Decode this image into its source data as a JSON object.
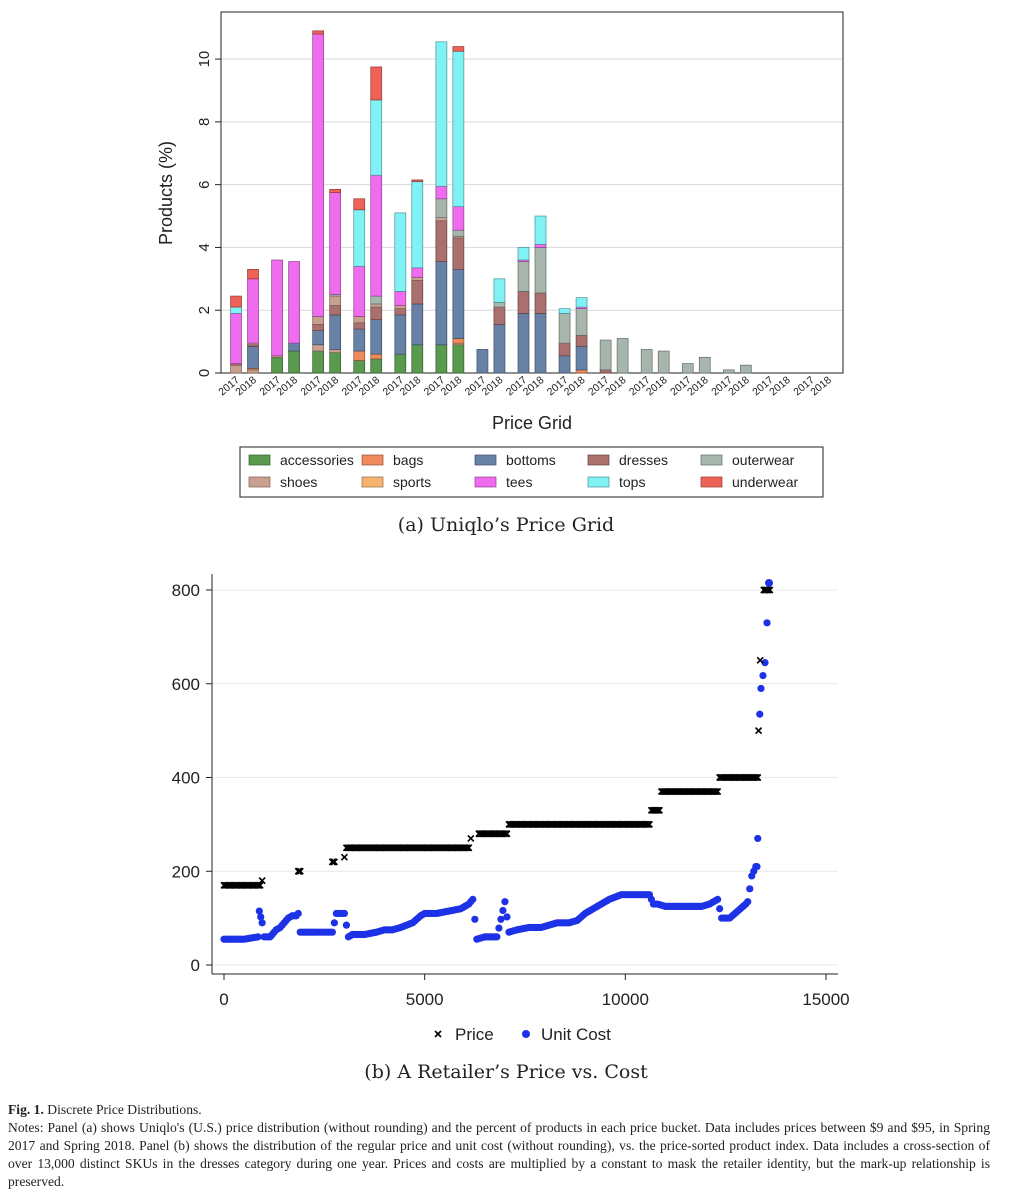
{
  "panel_a_caption": "(a)  Uniqlo’s Price Grid",
  "panel_b_caption": "(b)  A Retailer’s Price vs. Cost",
  "figure": {
    "label": "Fig. 1.",
    "title": "Discrete Price Distributions.",
    "notes": "Notes: Panel (a) shows Uniqlo's (U.S.) price distribution (without rounding) and the percent of products in each price bucket. Data includes prices between $9 and $95, in Spring 2017 and Spring 2018. Panel (b) shows the distribution of the regular price and unit cost (without rounding), vs. the price-sorted product index. Data includes a cross-section of over 13,000 distinct SKUs in the dresses category during one year. Prices and costs are multiplied by a constant to mask the retailer identity, but the mark-up relationship is preserved."
  },
  "colors": {
    "accessories": "#5a9a4e",
    "bags": "#f08a5a",
    "bottoms": "#6882a6",
    "dresses": "#a9706e",
    "outerwear": "#a6b6ad",
    "shoes": "#c9a08e",
    "sports": "#f6b46e",
    "tees": "#ef6cef",
    "tops": "#80f2f6",
    "underwear": "#ee6258",
    "price": "#000000",
    "unit_cost": "#1d32e6"
  },
  "chart_data": [
    {
      "type": "bar",
      "stacked": true,
      "xlabel": "Price Grid",
      "ylabel": "Products (%)",
      "ylim": [
        0,
        11.5
      ],
      "yticks": [
        0,
        2,
        4,
        6,
        8,
        10
      ],
      "grid": true,
      "legend_position": "bottom",
      "categories": [
        "2017",
        "2018",
        "2017",
        "2018",
        "2017",
        "2018",
        "2017",
        "2018",
        "2017",
        "2018",
        "2017",
        "2018",
        "2017",
        "2018",
        "2017",
        "2018",
        "2017",
        "2018",
        "2017",
        "2018",
        "2017",
        "2018",
        "2017",
        "2018",
        "2017",
        "2018",
        "2017",
        "2018",
        "2017",
        "2018"
      ],
      "series": [
        {
          "name": "accessories",
          "values": [
            0,
            0,
            0.5,
            0.7,
            0.7,
            0.65,
            0.4,
            0.45,
            0.6,
            0.9,
            0.9,
            0.9,
            0,
            0,
            0,
            0,
            0,
            0,
            0,
            0,
            0,
            0,
            0,
            0,
            0,
            0,
            0,
            0,
            0,
            0
          ]
        },
        {
          "name": "shoes",
          "values": [
            0.25,
            0.1,
            0.05,
            0,
            0.2,
            0.1,
            0,
            0,
            0,
            0,
            0,
            0.05,
            0,
            0,
            0,
            0,
            0,
            0,
            0,
            0,
            0,
            0,
            0,
            0,
            0,
            0,
            0,
            0,
            0,
            0
          ]
        },
        {
          "name": "bags",
          "values": [
            0,
            0.05,
            0,
            0,
            0,
            0,
            0.3,
            0.15,
            0,
            0,
            0,
            0.15,
            0,
            0,
            0,
            0,
            0,
            0.1,
            0,
            0,
            0,
            0,
            0,
            0,
            0,
            0,
            0,
            0,
            0,
            0
          ]
        },
        {
          "name": "sports",
          "values": [
            0,
            0,
            0,
            0,
            0,
            0,
            0,
            0,
            0,
            0,
            0,
            0,
            0,
            0,
            0,
            0,
            0,
            0,
            0,
            0,
            0,
            0,
            0,
            0,
            0,
            0,
            0,
            0,
            0,
            0
          ]
        },
        {
          "name": "bottoms",
          "values": [
            0,
            0.7,
            0,
            0.25,
            0.45,
            1.1,
            0.7,
            1.1,
            1.25,
            1.3,
            2.65,
            2.2,
            0.75,
            1.55,
            1.9,
            1.9,
            0.55,
            0.75,
            0,
            0,
            0,
            0,
            0,
            0,
            0,
            0,
            0,
            0,
            0,
            0
          ]
        },
        {
          "name": "dresses",
          "values": [
            0.05,
            0.05,
            0,
            0,
            0.2,
            0.3,
            0.2,
            0.4,
            0.2,
            0.75,
            1.3,
            1,
            0,
            0.55,
            0.7,
            0.65,
            0.4,
            0.35,
            0.1,
            0,
            0,
            0,
            0,
            0,
            0,
            0,
            0,
            0,
            0,
            0
          ]
        },
        {
          "name": "shoes",
          "values": [
            0,
            0.05,
            0,
            0,
            0.25,
            0.3,
            0.2,
            0.1,
            0.1,
            0.1,
            0.1,
            0.05,
            0,
            0,
            0,
            0,
            0,
            0,
            0,
            0,
            0,
            0,
            0,
            0,
            0,
            0,
            0,
            0,
            0,
            0
          ]
        },
        {
          "name": "outerwear",
          "values": [
            0,
            0,
            0,
            0,
            0,
            0.05,
            0,
            0.25,
            0,
            0,
            0.6,
            0.2,
            0,
            0.15,
            0.95,
            1.45,
            0.95,
            0.85,
            0.95,
            1.1,
            0.75,
            0.7,
            0.3,
            0.5,
            0.1,
            0.25,
            0,
            0,
            0,
            0
          ]
        },
        {
          "name": "tees",
          "values": [
            1.6,
            2.05,
            3.05,
            2.6,
            9,
            3.25,
            1.6,
            3.85,
            0.45,
            0.3,
            0.4,
            0.75,
            0,
            0,
            0.05,
            0.1,
            0,
            0.05,
            0,
            0,
            0,
            0,
            0,
            0,
            0,
            0,
            0,
            0,
            0,
            0
          ]
        },
        {
          "name": "tops",
          "values": [
            0.2,
            0,
            0,
            0,
            0,
            0,
            1.8,
            2.4,
            2.5,
            2.75,
            4.6,
            4.95,
            0,
            0.75,
            0.4,
            0.9,
            0.15,
            0.3,
            0,
            0,
            0,
            0,
            0,
            0,
            0,
            0,
            0,
            0,
            0,
            0
          ]
        },
        {
          "name": "underwear",
          "values": [
            0.35,
            0.3,
            0,
            0,
            0.1,
            0.1,
            0.35,
            1.05,
            0,
            0.05,
            0,
            0.15,
            0,
            0,
            0,
            0,
            0,
            0,
            0,
            0,
            0,
            0,
            0,
            0,
            0,
            0,
            0,
            0,
            0,
            0
          ]
        }
      ],
      "legend": [
        "accessories",
        "bags",
        "bottoms",
        "dresses",
        "outerwear",
        "shoes",
        "sports",
        "tees",
        "tops",
        "underwear"
      ]
    },
    {
      "type": "scatter",
      "xlabel": "",
      "ylabel": "",
      "xlim": [
        0,
        15000
      ],
      "ylim": [
        0,
        800
      ],
      "xticks": [
        0,
        5000,
        10000,
        15000
      ],
      "yticks": [
        0,
        200,
        400,
        600,
        800
      ],
      "legend_position": "bottom",
      "series": [
        {
          "name": "Price",
          "marker": "x",
          "x": [
            0,
            900,
            950,
            1850,
            1900,
            2700,
            2750,
            3000,
            3050,
            6100,
            6150,
            6350,
            6400,
            7050,
            7100,
            10600,
            10650,
            10850,
            10900,
            12300,
            12350,
            13300,
            13320,
            13360,
            13450,
            13500,
            13600
          ],
          "y": [
            170,
            170,
            180,
            200,
            200,
            220,
            220,
            230,
            250,
            250,
            270,
            280,
            280,
            280,
            300,
            300,
            330,
            330,
            370,
            370,
            400,
            400,
            500,
            650,
            800,
            800,
            800
          ]
        },
        {
          "name": "Unit Cost",
          "marker": "o",
          "x": [
            0,
            500,
            850,
            880,
            950,
            1000,
            1150,
            1300,
            1400,
            1500,
            1600,
            1700,
            1800,
            1850,
            1900,
            2000,
            2300,
            2500,
            2700,
            2800,
            3000,
            3100,
            3200,
            3500,
            3800,
            4000,
            4200,
            4400,
            4700,
            4900,
            5000,
            5300,
            5600,
            5900,
            6100,
            6200,
            6300,
            6500,
            6800,
            7000,
            7100,
            7300,
            7600,
            7900,
            8100,
            8300,
            8600,
            8800,
            9000,
            9200,
            9400,
            9600,
            9900,
            10100,
            10300,
            10600,
            10700,
            10800,
            11000,
            11300,
            11600,
            11900,
            12100,
            12300,
            12400,
            12600,
            12800,
            13000,
            13050,
            13150,
            13200,
            13250,
            13280,
            13300,
            13350,
            13380,
            13480,
            13580
          ],
          "y": [
            55,
            55,
            60,
            115,
            90,
            60,
            60,
            75,
            80,
            90,
            100,
            105,
            105,
            110,
            70,
            70,
            70,
            70,
            70,
            110,
            110,
            60,
            65,
            65,
            70,
            75,
            75,
            80,
            90,
            105,
            110,
            110,
            115,
            120,
            130,
            140,
            55,
            60,
            60,
            135,
            70,
            75,
            80,
            80,
            85,
            90,
            90,
            95,
            110,
            120,
            130,
            140,
            150,
            150,
            150,
            150,
            130,
            130,
            125,
            125,
            125,
            125,
            130,
            140,
            100,
            100,
            115,
            130,
            135,
            190,
            200,
            210,
            210,
            270,
            535,
            590,
            645,
            815
          ]
        }
      ]
    }
  ]
}
